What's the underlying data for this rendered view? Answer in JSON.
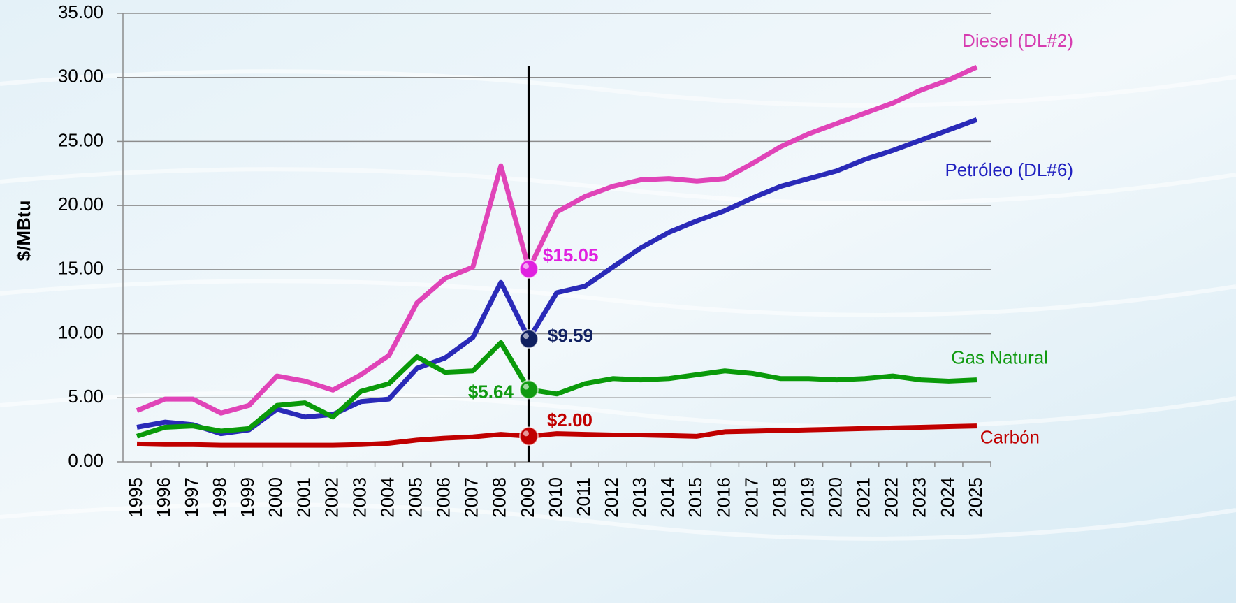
{
  "chart_data": {
    "type": "line",
    "y_label": "$/MBtu",
    "categories": [
      "1995",
      "1996",
      "1997",
      "1998",
      "1999",
      "2000",
      "2001",
      "2002",
      "2003",
      "2004",
      "2005",
      "2006",
      "2007",
      "2008",
      "2009",
      "2010",
      "2011",
      "2012",
      "2013",
      "2014",
      "2015",
      "2016",
      "2017",
      "2018",
      "2019",
      "2020",
      "2021",
      "2022",
      "2023",
      "2024",
      "2025"
    ],
    "ylim": [
      0,
      35
    ],
    "yticks": [
      {
        "value": 0,
        "label": "0.00"
      },
      {
        "value": 5,
        "label": "5.00"
      },
      {
        "value": 10,
        "label": "10.00"
      },
      {
        "value": 15,
        "label": "15.00"
      },
      {
        "value": 20,
        "label": "20.00"
      },
      {
        "value": 25,
        "label": "25.00"
      },
      {
        "value": 30,
        "label": "30.00"
      },
      {
        "value": 35,
        "label": "35.00"
      }
    ],
    "grid": true,
    "series": [
      {
        "name": "Diesel (DL#2)",
        "color": "#e044b8",
        "values": [
          4.0,
          4.9,
          4.9,
          3.8,
          4.4,
          6.7,
          6.3,
          5.6,
          6.8,
          8.3,
          12.4,
          14.3,
          15.2,
          23.1,
          15.05,
          19.5,
          20.7,
          21.5,
          22.0,
          22.1,
          21.9,
          22.1,
          23.3,
          24.6,
          25.6,
          26.4,
          27.2,
          28.0,
          29.0,
          29.8,
          30.8
        ],
        "value_labels": [
          null,
          null,
          null,
          null,
          null,
          null,
          null,
          null,
          null,
          null,
          null,
          null,
          null,
          null,
          "$15.05",
          null,
          null,
          null,
          null,
          null,
          null,
          null,
          null,
          null,
          null,
          null,
          null,
          null,
          null,
          null,
          null
        ]
      },
      {
        "name": "Petróleo (DL#6)",
        "color": "#2a2ab8",
        "values": [
          2.7,
          3.1,
          2.9,
          2.2,
          2.5,
          4.1,
          3.5,
          3.7,
          4.7,
          4.9,
          7.3,
          8.1,
          9.7,
          14.0,
          9.59,
          13.2,
          13.7,
          15.2,
          16.7,
          17.9,
          18.8,
          19.6,
          20.6,
          21.5,
          22.1,
          22.7,
          23.6,
          24.3,
          25.1,
          25.9,
          26.7
        ],
        "value_labels": [
          null,
          null,
          null,
          null,
          null,
          null,
          null,
          null,
          null,
          null,
          null,
          null,
          null,
          null,
          "$9.59",
          null,
          null,
          null,
          null,
          null,
          null,
          null,
          null,
          null,
          null,
          null,
          null,
          null,
          null,
          null,
          null
        ]
      },
      {
        "name": "Gas Natural",
        "color": "#0a9a0a",
        "values": [
          2.0,
          2.7,
          2.8,
          2.4,
          2.6,
          4.4,
          4.6,
          3.5,
          5.5,
          6.1,
          8.2,
          7.0,
          7.1,
          9.3,
          5.64,
          5.3,
          6.1,
          6.5,
          6.4,
          6.5,
          6.8,
          7.1,
          6.9,
          6.5,
          6.5,
          6.4,
          6.5,
          6.7,
          6.4,
          6.3,
          6.4
        ],
        "value_labels": [
          null,
          null,
          null,
          null,
          null,
          null,
          null,
          null,
          null,
          null,
          null,
          null,
          null,
          null,
          "$5.64",
          null,
          null,
          null,
          null,
          null,
          null,
          null,
          null,
          null,
          null,
          null,
          null,
          null,
          null,
          null,
          null
        ]
      },
      {
        "name": "Carbón",
        "color": "#c00000",
        "values": [
          1.4,
          1.35,
          1.35,
          1.3,
          1.3,
          1.3,
          1.3,
          1.3,
          1.35,
          1.45,
          1.7,
          1.85,
          1.95,
          2.15,
          2.0,
          2.2,
          2.15,
          2.1,
          2.1,
          2.05,
          2.0,
          2.35,
          2.4,
          2.45,
          2.5,
          2.55,
          2.6,
          2.65,
          2.7,
          2.75,
          2.8
        ],
        "value_labels": [
          null,
          null,
          null,
          null,
          null,
          null,
          null,
          null,
          null,
          null,
          null,
          null,
          null,
          null,
          "$2.00",
          null,
          null,
          null,
          null,
          null,
          null,
          null,
          null,
          null,
          null,
          null,
          null,
          null,
          null,
          null,
          null
        ]
      }
    ]
  }
}
